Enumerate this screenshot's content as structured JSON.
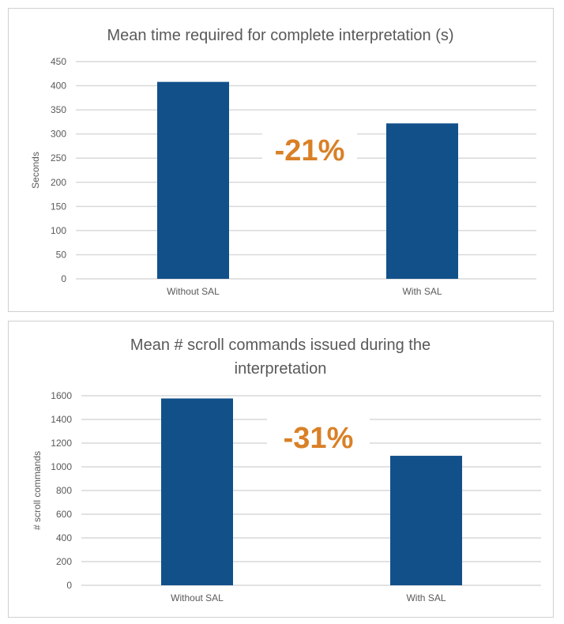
{
  "chart_data": [
    {
      "type": "bar",
      "title": "Mean time required for complete interpretation (s)",
      "title_lines": [
        "Mean time required for complete interpretation (s)"
      ],
      "xlabel": "",
      "ylabel": "Seconds",
      "categories": [
        "Without SAL",
        "With SAL"
      ],
      "values": [
        408,
        322
      ],
      "ylim": [
        0,
        450
      ],
      "yticks": [
        0,
        50,
        100,
        150,
        200,
        250,
        300,
        350,
        400,
        450
      ],
      "grid": true,
      "annotation": "-21%",
      "bar_color": "#12508a",
      "annotation_color": "#d98027"
    },
    {
      "type": "bar",
      "title": "Mean # scroll commands issued during the interpretation",
      "title_lines": [
        "Mean # scroll commands issued during the",
        "interpretation"
      ],
      "xlabel": "",
      "ylabel": "# scroll commands",
      "categories": [
        "Without SAL",
        "With SAL"
      ],
      "values": [
        1577,
        1093
      ],
      "ylim": [
        0,
        1600
      ],
      "yticks": [
        0,
        200,
        400,
        600,
        800,
        1000,
        1200,
        1400,
        1600
      ],
      "grid": true,
      "annotation": "-31%",
      "bar_color": "#12508a",
      "annotation_color": "#d98027"
    }
  ]
}
